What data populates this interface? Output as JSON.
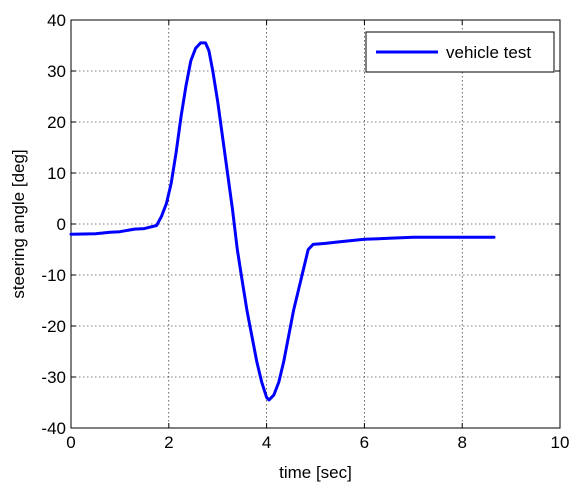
{
  "chart_data": {
    "type": "line",
    "title": "",
    "xlabel": "time [sec]",
    "ylabel": "steering angle [deg]",
    "xlim": [
      0,
      10
    ],
    "ylim": [
      -40,
      40
    ],
    "x_ticks": [
      0,
      2,
      4,
      6,
      8,
      10
    ],
    "y_ticks": [
      -40,
      -30,
      -20,
      -10,
      0,
      10,
      20,
      30,
      40
    ],
    "grid": true,
    "legend": {
      "placement": "top-right",
      "entries": [
        "vehicle test"
      ]
    },
    "series": [
      {
        "name": "vehicle test",
        "color": "#0000ff",
        "x": [
          0,
          0.5,
          0.8,
          1.0,
          1.3,
          1.5,
          1.75,
          1.85,
          1.95,
          2.05,
          2.15,
          2.25,
          2.35,
          2.45,
          2.55,
          2.65,
          2.75,
          2.82,
          2.9,
          3.0,
          3.1,
          3.2,
          3.3,
          3.4,
          3.5,
          3.6,
          3.7,
          3.8,
          3.9,
          4.0,
          4.05,
          4.15,
          4.25,
          4.35,
          4.45,
          4.55,
          4.65,
          4.75,
          4.85,
          4.95,
          5.2,
          5.5,
          6.0,
          6.5,
          7.0,
          8.0,
          8.65
        ],
        "y": [
          -2,
          -1.9,
          -1.6,
          -1.5,
          -1.0,
          -0.9,
          -0.3,
          1.5,
          4,
          8,
          14,
          21,
          27,
          32,
          34.5,
          35.5,
          35.5,
          34,
          30,
          24,
          17,
          10,
          3,
          -5,
          -11,
          -17,
          -22,
          -27,
          -31,
          -34,
          -34.5,
          -33.5,
          -31,
          -27,
          -22,
          -17,
          -13,
          -9,
          -5,
          -4,
          -3.8,
          -3.5,
          -3.0,
          -2.8,
          -2.6,
          -2.6,
          -2.6
        ]
      }
    ]
  }
}
